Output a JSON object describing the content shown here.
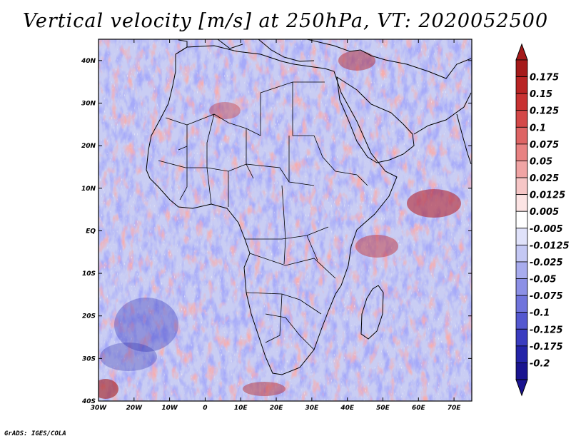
{
  "title": "Vertical velocity [m/s] at 250hPa, VT: 2020052500",
  "credit": "GrADS: IGES/COLA",
  "map": {
    "lat_labels": [
      "40N",
      "30N",
      "20N",
      "10N",
      "EQ",
      "10S",
      "20S",
      "30S",
      "40S"
    ],
    "lon_labels": [
      "30W",
      "20W",
      "10W",
      "0",
      "10E",
      "20E",
      "30E",
      "40E",
      "50E",
      "60E",
      "70E"
    ],
    "lat_range": [
      -40,
      45
    ],
    "lon_range": [
      -30,
      75
    ]
  },
  "colorbar": {
    "labels": [
      "0.175",
      "0.15",
      "0.125",
      "0.1",
      "0.075",
      "0.05",
      "0.025",
      "0.0125",
      "0.005",
      "-0.005",
      "-0.0125",
      "-0.025",
      "-0.05",
      "-0.075",
      "-0.1",
      "-0.125",
      "-0.175",
      "-0.2"
    ],
    "colors": [
      "#a51a1a",
      "#b92424",
      "#c83232",
      "#d44848",
      "#de6464",
      "#e88282",
      "#f0a4a4",
      "#f6c6c6",
      "#fce4e4",
      "#ffffff",
      "#e0e2fa",
      "#c4c8f4",
      "#a8acee",
      "#8c90e6",
      "#7074dc",
      "#5458d0",
      "#3a3cc0",
      "#2424a8",
      "#1a1490"
    ]
  }
}
